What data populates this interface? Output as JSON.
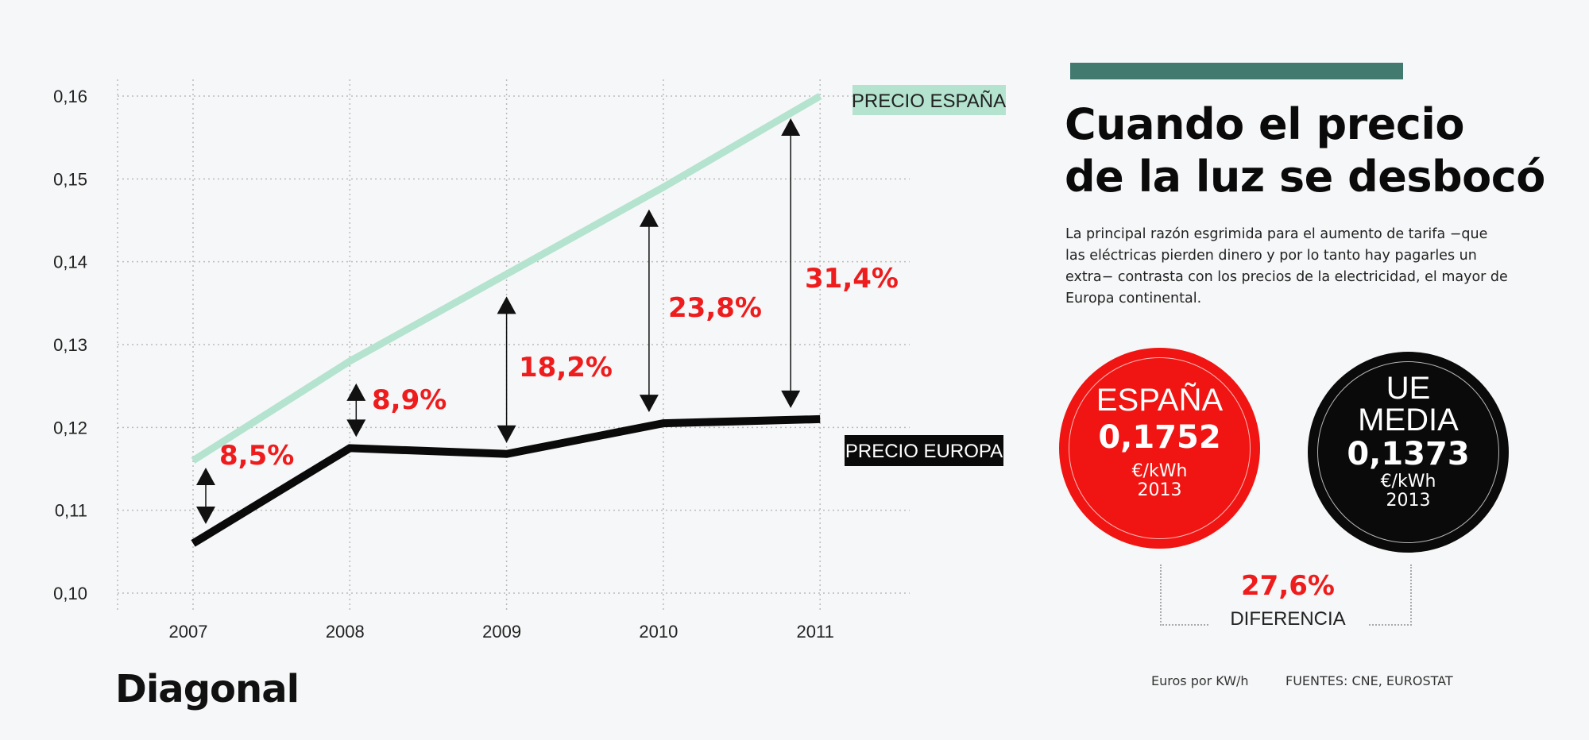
{
  "chart_data": {
    "type": "line",
    "x": [
      2007,
      2008,
      2009,
      2010,
      2011
    ],
    "x_tick_labels": [
      "2007",
      "2008",
      "2009",
      "2010",
      "2011"
    ],
    "y_tick_labels": [
      "0,10",
      "0,11",
      "0,12",
      "0,13",
      "0,14",
      "0,15",
      "0,16"
    ],
    "y_ticks": [
      0.1,
      0.11,
      0.12,
      0.13,
      0.14,
      0.15,
      0.16
    ],
    "ylim": [
      0.1,
      0.16
    ],
    "grid": true,
    "series": [
      {
        "name": "PRECIO ESPAÑA",
        "values": [
          0.116,
          0.128,
          0.1385,
          0.149,
          0.16
        ],
        "color": "#b4e3cf"
      },
      {
        "name": "PRECIO EUROPA",
        "values": [
          0.106,
          0.1175,
          0.1168,
          0.1205,
          0.121
        ],
        "color": "#0a0a0a"
      }
    ],
    "annotations": [
      {
        "year": 2007,
        "label": "8,5%"
      },
      {
        "year": 2008,
        "label": "8,9%"
      },
      {
        "year": 2009,
        "label": "18,2%"
      },
      {
        "year": 2010,
        "label": "23,8%"
      },
      {
        "year": 2011,
        "label": "31,4%"
      }
    ],
    "annotation_color": "#ee1c1c"
  },
  "panel": {
    "title_line1": "Cuando el precio",
    "title_line2": "de la luz se desbocó",
    "description": "La principal razón esgrimida para el aumento de tarifa −que las eléctricas pierden dinero y por lo tanto hay pagarles un extra− contrasta con los precios de la electricidad, el mayor de Europa continental.",
    "accent_color": "#437a70",
    "spain": {
      "name": "ESPAÑA",
      "value": "0,1752",
      "unit": "€/kWh",
      "year": "2013",
      "color": "#f01512"
    },
    "eu": {
      "name_line1": "UE",
      "name_line2": "MEDIA",
      "value": "0,1373",
      "unit": "€/kWh",
      "year": "2013",
      "color": "#0a0a0a"
    },
    "difference": {
      "value": "27,6%",
      "label": "DIFERENCIA"
    },
    "units_note": "Euros por KW/h",
    "sources": "FUENTES: CNE, EUROSTAT"
  },
  "logo": "Diagonal"
}
